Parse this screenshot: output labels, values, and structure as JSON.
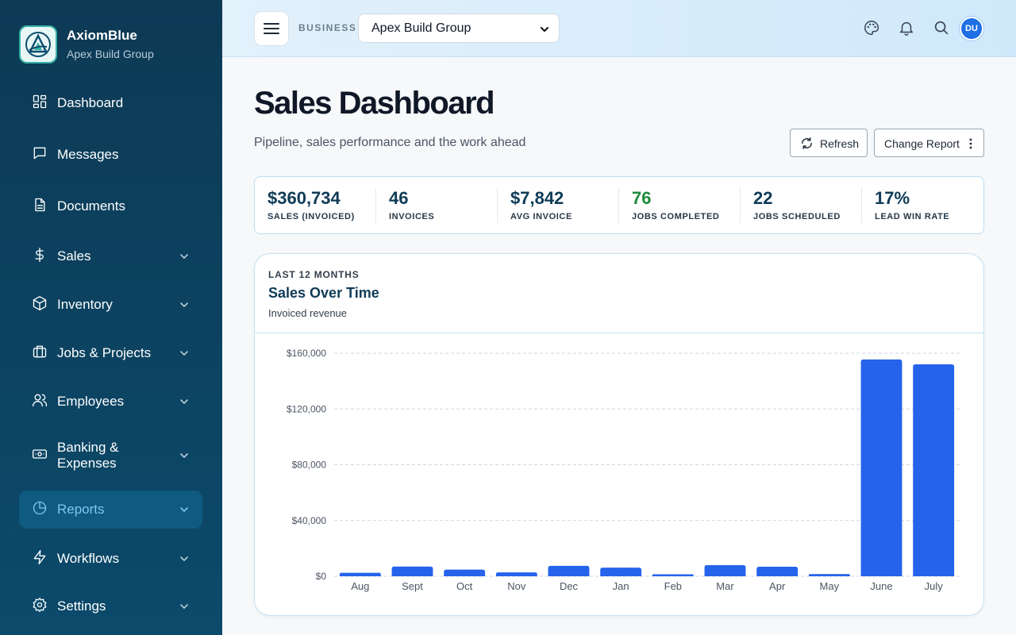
{
  "brand": {
    "name": "AxiomBlue",
    "subtitle": "Apex Build Group"
  },
  "sidebar": {
    "items": [
      {
        "label": "Dashboard",
        "icon": "dashboard-grid-icon",
        "expandable": false
      },
      {
        "label": "Messages",
        "icon": "message-icon",
        "expandable": false
      },
      {
        "label": "Documents",
        "icon": "document-icon",
        "expandable": false
      },
      {
        "label": "Sales",
        "icon": "dollar-icon",
        "expandable": true
      },
      {
        "label": "Inventory",
        "icon": "box-icon",
        "expandable": true
      },
      {
        "label": "Jobs & Projects",
        "icon": "briefcase-icon",
        "expandable": true
      },
      {
        "label": "Employees",
        "icon": "users-icon",
        "expandable": true
      },
      {
        "label": "Banking &",
        "label2": "Expenses",
        "icon": "banknote-icon",
        "expandable": true
      },
      {
        "label": "Reports",
        "icon": "pie-chart-icon",
        "expandable": true,
        "active": true
      },
      {
        "label": "Workflows",
        "icon": "lightning-icon",
        "expandable": true
      },
      {
        "label": "Settings",
        "icon": "gear-icon",
        "expandable": true
      }
    ]
  },
  "topbar": {
    "business_label": "BUSINESS",
    "business_selected": "Apex Build Group",
    "avatar_initials": "DU",
    "icons": [
      "palette-icon",
      "bell-icon",
      "search-icon"
    ]
  },
  "header": {
    "title": "Sales Dashboard",
    "subtitle": "Pipeline, sales performance and the work ahead",
    "refresh_label": "Refresh",
    "change_report_label": "Change Report"
  },
  "kpis": [
    {
      "value": "$360,734",
      "label": "SALES (INVOICED)",
      "color": "#0f3b57"
    },
    {
      "value": "46",
      "label": "INVOICES",
      "color": "#0f3b57"
    },
    {
      "value": "$7,842",
      "label": "AVG INVOICE",
      "color": "#0f3b57"
    },
    {
      "value": "76",
      "label": "JOBS COMPLETED",
      "color": "#1b8a3a"
    },
    {
      "value": "22",
      "label": "JOBS SCHEDULED",
      "color": "#0f3b57"
    },
    {
      "value": "17%",
      "label": "LEAD WIN RATE",
      "color": "#0f3b57"
    }
  ],
  "card": {
    "eyebrow": "LAST 12 MONTHS",
    "title": "Sales Over Time",
    "subtitle": "Invoiced revenue"
  },
  "chart_data": {
    "type": "bar",
    "categories": [
      "Aug",
      "Sept",
      "Oct",
      "Nov",
      "Dec",
      "Jan",
      "Feb",
      "Mar",
      "Apr",
      "May",
      "June",
      "July"
    ],
    "values": [
      2500,
      7000,
      4800,
      2800,
      7500,
      6200,
      1400,
      8000,
      6800,
      1600,
      155500,
      152000
    ],
    "ylim": [
      0,
      160000
    ],
    "yticks": [
      0,
      40000,
      80000,
      120000,
      160000
    ],
    "ytick_labels": [
      "$0",
      "$40,000",
      "$80,000",
      "$120,000",
      "$160,000"
    ],
    "grid": true,
    "bar_color": "#2563eb",
    "xlabel": "",
    "ylabel": ""
  },
  "colors": {
    "accent": "#2563eb",
    "sidebar": "#0d3a55",
    "positive": "#1b8a3a"
  }
}
